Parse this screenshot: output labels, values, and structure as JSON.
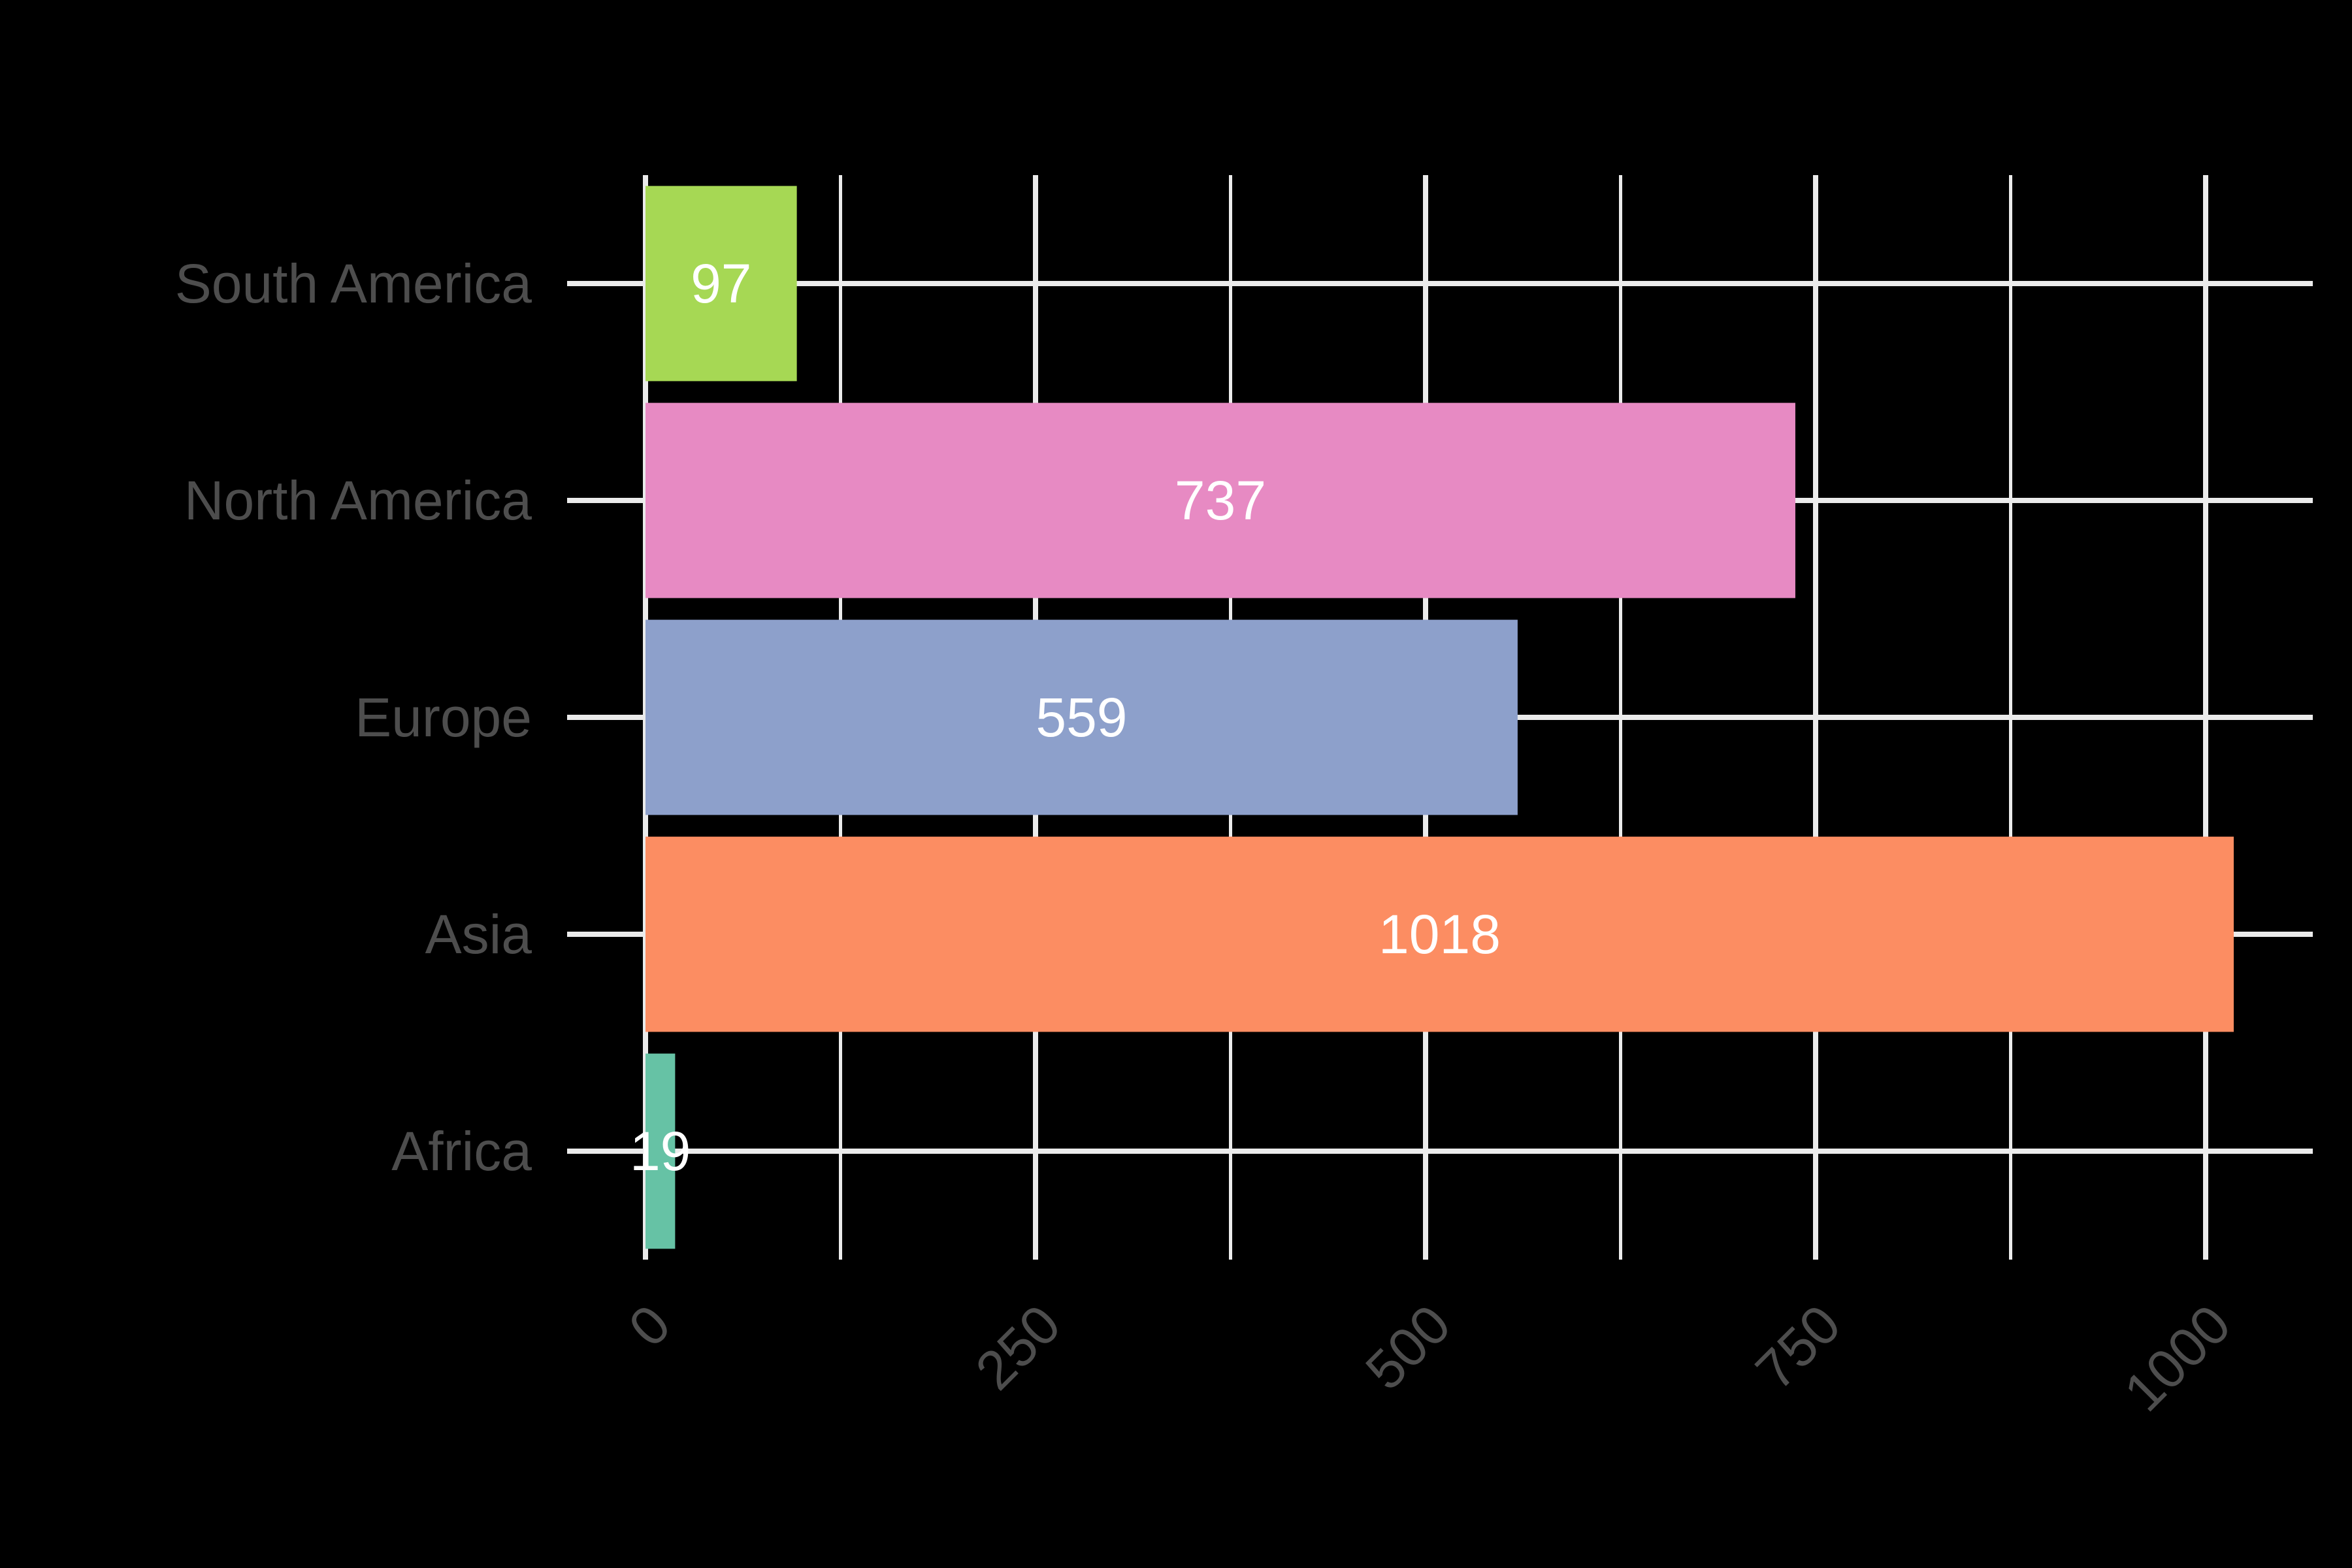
{
  "chart_data": {
    "type": "bar",
    "orientation": "horizontal",
    "categories": [
      "Africa",
      "Asia",
      "Europe",
      "North America",
      "South America"
    ],
    "values": [
      19,
      1018,
      559,
      737,
      97
    ],
    "colors": [
      "#66c2a5",
      "#fc8d62",
      "#8da0cb",
      "#e78ac3",
      "#a6d854"
    ],
    "title": "",
    "xlabel": "",
    "ylabel": "",
    "xlim": [
      0,
      1018
    ],
    "xticks": [
      0,
      250,
      500,
      750,
      1000
    ],
    "xtick_labels": [
      "0",
      "250",
      "500",
      "750",
      "1000"
    ],
    "xtick_rotation": 45,
    "grid": true,
    "legend": "none",
    "background": "#000000",
    "gridline_color": "#ebebeb",
    "text_color": "#4d4d4d",
    "bar_label_color": "#ffffff"
  }
}
